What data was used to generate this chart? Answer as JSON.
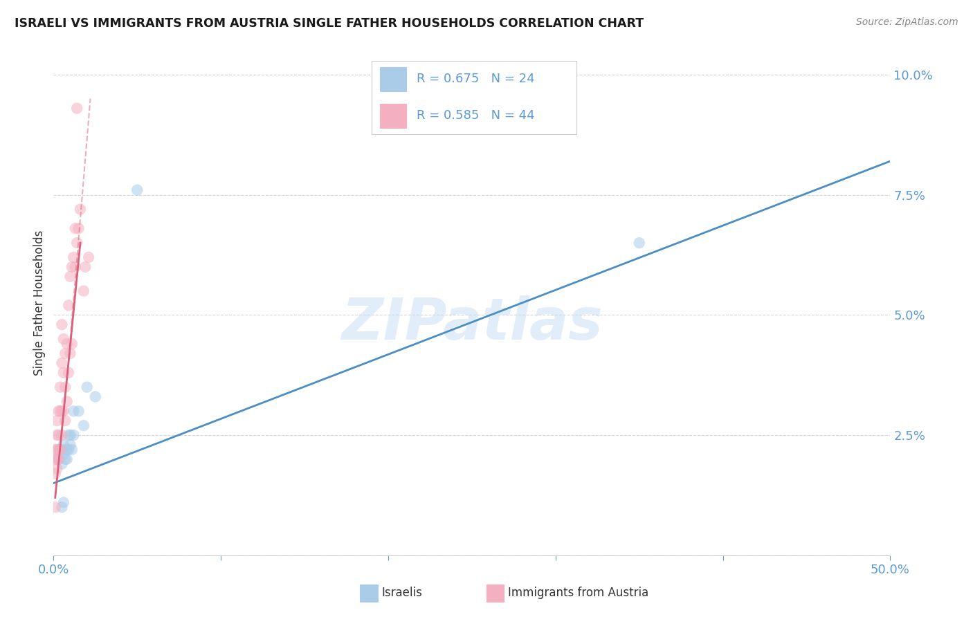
{
  "title": "ISRAELI VS IMMIGRANTS FROM AUSTRIA SINGLE FATHER HOUSEHOLDS CORRELATION CHART",
  "source": "Source: ZipAtlas.com",
  "ylabel": "Single Father Households",
  "watermark": "ZIPatlas",
  "xlim": [
    0.0,
    0.5
  ],
  "ylim": [
    0.0,
    0.105
  ],
  "yticks": [
    0.0,
    0.025,
    0.05,
    0.075,
    0.1
  ],
  "ytick_labels": [
    "",
    "2.5%",
    "5.0%",
    "7.5%",
    "10.0%"
  ],
  "xticks": [
    0.0,
    0.1,
    0.2,
    0.3,
    0.4,
    0.5
  ],
  "xtick_labels": [
    "0.0%",
    "",
    "",
    "",
    "",
    "50.0%"
  ],
  "israelis_x": [
    0.003,
    0.004,
    0.005,
    0.005,
    0.006,
    0.006,
    0.007,
    0.008,
    0.009,
    0.01,
    0.012,
    0.015,
    0.018,
    0.02,
    0.025,
    0.05,
    0.35,
    0.008,
    0.009,
    0.01,
    0.011,
    0.012,
    0.005,
    0.006
  ],
  "israelis_y": [
    0.02,
    0.022,
    0.019,
    0.022,
    0.021,
    0.023,
    0.02,
    0.022,
    0.025,
    0.025,
    0.03,
    0.03,
    0.027,
    0.035,
    0.033,
    0.076,
    0.065,
    0.02,
    0.022,
    0.023,
    0.022,
    0.025,
    0.01,
    0.011
  ],
  "austria_x": [
    0.001,
    0.001,
    0.001,
    0.002,
    0.002,
    0.002,
    0.002,
    0.002,
    0.003,
    0.003,
    0.003,
    0.003,
    0.004,
    0.004,
    0.004,
    0.005,
    0.005,
    0.005,
    0.005,
    0.006,
    0.006,
    0.006,
    0.007,
    0.007,
    0.007,
    0.008,
    0.008,
    0.009,
    0.009,
    0.01,
    0.01,
    0.011,
    0.011,
    0.012,
    0.013,
    0.013,
    0.014,
    0.015,
    0.016,
    0.018,
    0.019,
    0.021,
    0.001,
    0.014
  ],
  "austria_y": [
    0.017,
    0.02,
    0.022,
    0.018,
    0.02,
    0.022,
    0.025,
    0.028,
    0.02,
    0.022,
    0.025,
    0.03,
    0.022,
    0.03,
    0.035,
    0.025,
    0.03,
    0.04,
    0.048,
    0.03,
    0.038,
    0.045,
    0.028,
    0.035,
    0.042,
    0.032,
    0.044,
    0.038,
    0.052,
    0.042,
    0.058,
    0.044,
    0.06,
    0.062,
    0.06,
    0.068,
    0.065,
    0.068,
    0.072,
    0.055,
    0.06,
    0.062,
    0.01,
    0.093
  ],
  "blue_color": "#aacce8",
  "pink_color": "#f4afc0",
  "blue_line_color": "#4a8ec2",
  "pink_line_color": "#d9607a",
  "blue_R": "0.675",
  "blue_N": "24",
  "pink_R": "0.585",
  "pink_N": "44",
  "tick_color": "#5b9bd5",
  "grid_color": "#d0d0d0",
  "bg_color": "#ffffff",
  "scatter_alpha": 0.55,
  "scatter_size": 140
}
